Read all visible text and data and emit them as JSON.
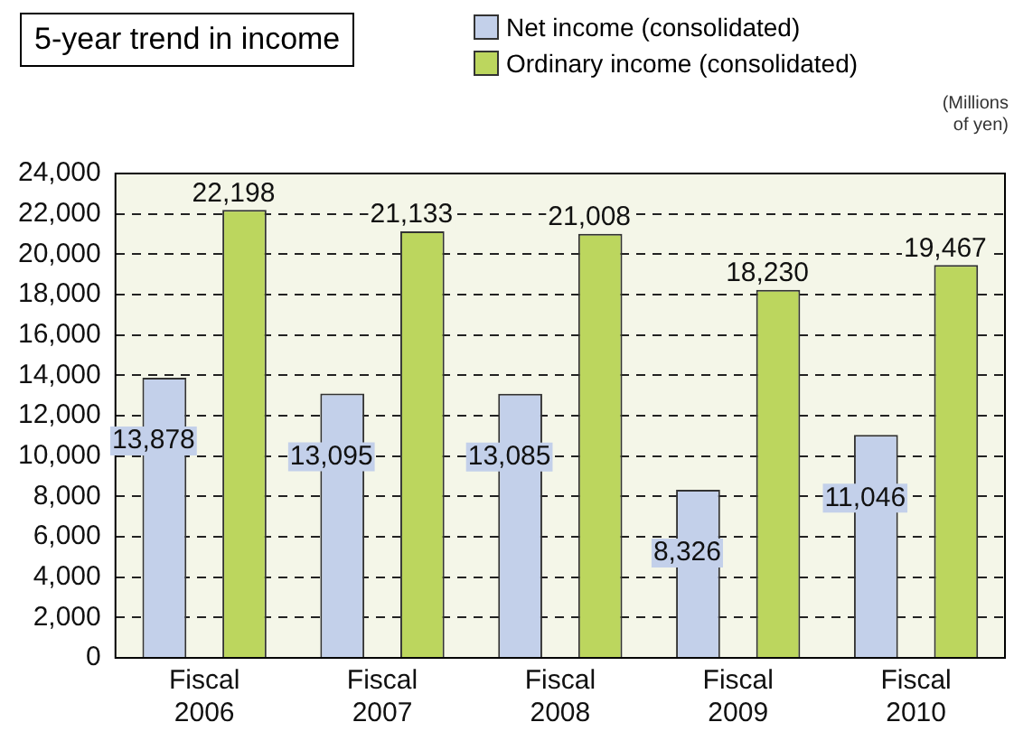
{
  "chart_data": {
    "type": "bar",
    "title": "5-year trend in income",
    "annotations": [
      "(Millions of yen)"
    ],
    "categories": [
      "Fiscal 2006",
      "Fiscal 2007",
      "Fiscal 2008",
      "Fiscal 2009",
      "Fiscal 2010"
    ],
    "series": [
      {
        "name": "Net income (consolidated)",
        "color": "#c3d0ea",
        "values": [
          13878,
          13095,
          13085,
          8326,
          11046
        ],
        "value_labels": [
          "13,878",
          "13,095",
          "13,085",
          "8,326",
          "11,046"
        ]
      },
      {
        "name": "Ordinary income (consolidated)",
        "color": "#bcd65e",
        "values": [
          22198,
          21133,
          21008,
          18230,
          19467
        ],
        "value_labels": [
          "22,198",
          "21,133",
          "21,008",
          "18,230",
          "19,467"
        ]
      }
    ],
    "ylim": [
      0,
      24000
    ],
    "yticks": [
      {
        "value": 0,
        "label": "0"
      },
      {
        "value": 2000,
        "label": "2,000"
      },
      {
        "value": 4000,
        "label": "4,000"
      },
      {
        "value": 6000,
        "label": "6,000"
      },
      {
        "value": 8000,
        "label": "8,000"
      },
      {
        "value": 10000,
        "label": "10,000"
      },
      {
        "value": 12000,
        "label": "12,000"
      },
      {
        "value": 14000,
        "label": "14,000"
      },
      {
        "value": 16000,
        "label": "16,000"
      },
      {
        "value": 18000,
        "label": "18,000"
      },
      {
        "value": 20000,
        "label": "20,000"
      },
      {
        "value": 22000,
        "label": "22,000"
      },
      {
        "value": 24000,
        "label": "24,000"
      }
    ],
    "grid": "y",
    "legend": "top right"
  }
}
